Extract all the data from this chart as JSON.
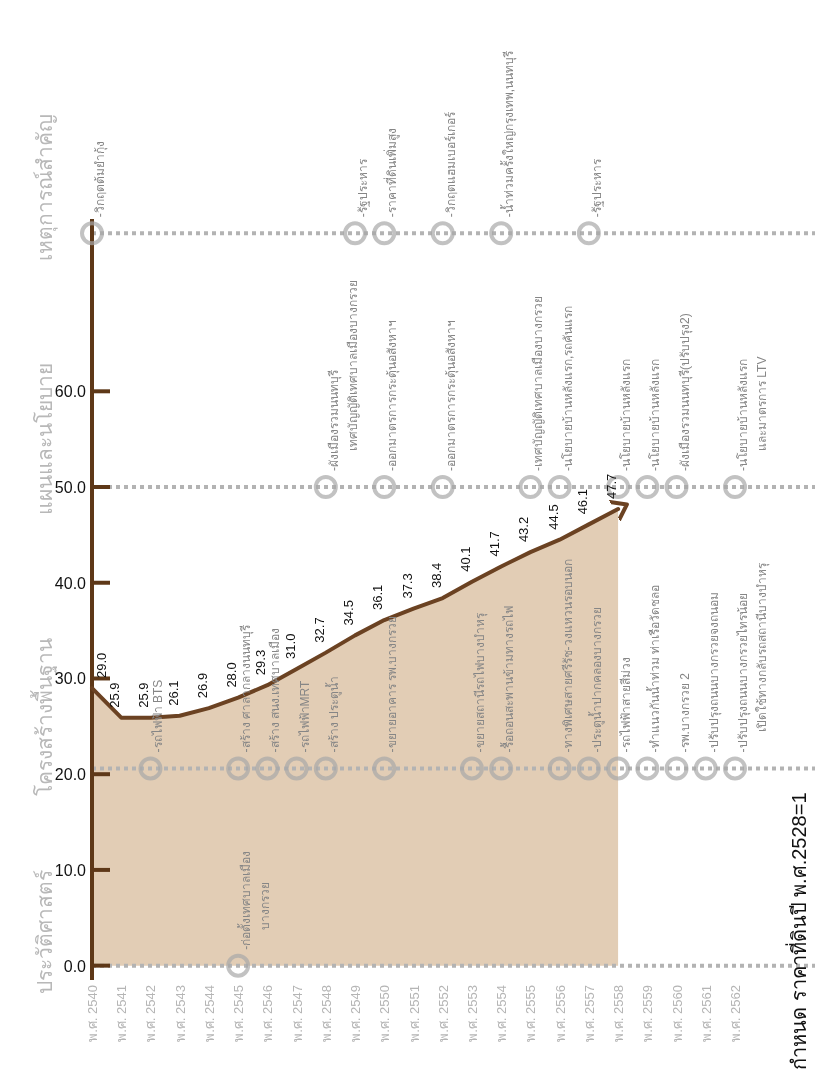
{
  "chart_data": {
    "type": "area",
    "categories": [
      "พ.ศ. 2540",
      "พ.ศ. 2541",
      "พ.ศ. 2542",
      "พ.ศ. 2543",
      "พ.ศ. 2544",
      "พ.ศ. 2545",
      "พ.ศ. 2546",
      "พ.ศ. 2547",
      "พ.ศ. 2548",
      "พ.ศ. 2549",
      "พ.ศ. 2550",
      "พ.ศ. 2551",
      "พ.ศ. 2552",
      "พ.ศ. 2553",
      "พ.ศ. 2554",
      "พ.ศ. 2555",
      "พ.ศ. 2556",
      "พ.ศ. 2557",
      "พ.ศ. 2558",
      "พ.ศ. 2559",
      "พ.ศ. 2560",
      "พ.ศ. 2561",
      "พ.ศ. 2562"
    ],
    "series": [
      {
        "color": "#6b4222",
        "values": [
          29.0,
          25.9,
          25.9,
          26.1,
          26.9,
          28.0,
          29.3,
          31.0,
          32.7,
          34.5,
          36.1,
          37.3,
          38.4,
          40.1,
          41.7,
          43.2,
          44.5,
          46.1,
          47.7,
          null,
          null,
          null,
          null
        ],
        "value_labels": [
          "29.0",
          "25.9",
          "25.9",
          "26.1",
          "26.9",
          "28.0",
          "29.3",
          "31.0",
          "32.7",
          "34.5",
          "36.1",
          "37.3",
          "38.4",
          "40.1",
          "41.7",
          "43.2",
          "44.5",
          "46.1",
          "47.7",
          null,
          null,
          null,
          null
        ]
      }
    ],
    "ylim": [
      -1.5,
      78
    ],
    "yticks": [
      {
        "value": 0,
        "label": "0.0"
      },
      {
        "value": 10,
        "label": "10.0"
      },
      {
        "value": 20,
        "label": "20.0"
      },
      {
        "value": 30,
        "label": "30.0"
      },
      {
        "value": 40,
        "label": "40.0"
      },
      {
        "value": 50,
        "label": "50.0"
      },
      {
        "value": 60,
        "label": "60.0"
      }
    ],
    "ref_lines": [
      {
        "axis": "y",
        "value": 0,
        "label": "ประวัติศาสตร์",
        "color": "#b3b3b3",
        "line_style": "dotted"
      },
      {
        "axis": "y",
        "value": 20.6,
        "label": "โครงสร้างพื้นฐาน",
        "color": "#b3b3b3",
        "line_style": "dotted"
      },
      {
        "axis": "y",
        "value": 50,
        "label": "แผนและนโยบาย",
        "color": "#b3b3b3",
        "line_style": "dotted"
      },
      {
        "axis": "y",
        "value": 76.5,
        "label": "เหตุการณ์สำคัญ",
        "color": "#b3b3b3",
        "line_style": "dotted"
      }
    ],
    "annotations": [
      {
        "text": "-วิกฤตต้มยำกุ้ง",
        "x": "พ.ศ. 2540",
        "y": 76.5
      },
      {
        "text": "-รัฐประหาร",
        "x": "พ.ศ. 2549",
        "y": 76.5
      },
      {
        "text": "-ราคาที่ดินเพิ่มสูง",
        "x": "พ.ศ. 2550",
        "y": 76.5
      },
      {
        "text": "-วิกฤตแฮมเบอร์เกอร์",
        "x": "พ.ศ. 2552",
        "y": 76.5
      },
      {
        "text": "-น้ำท่วมครั้งใหญ่กรุงเทพ,นนทบุรี",
        "x": "พ.ศ. 2554",
        "y": 76.5
      },
      {
        "text": "-รัฐประหาร",
        "x": "พ.ศ. 2557",
        "y": 76.5
      },
      {
        "text": "-ผังเมืองรวมนนทบุรี\nเทศบัญญัติเทศบาลเมืองบางกรวย",
        "x": "พ.ศ. 2548",
        "y": 50
      },
      {
        "text": "-ออกมาตรการกระตุ้นอสังหาฯ",
        "x": "พ.ศ. 2550",
        "y": 50
      },
      {
        "text": "-ออกมาตรการกระตุ้นอสังหาฯ",
        "x": "พ.ศ. 2552",
        "y": 50
      },
      {
        "text": "-เทศบัญญัติเทศบาลเมืองบางกรวย",
        "x": "พ.ศ. 2555",
        "y": 50
      },
      {
        "text": "-นโยบายบ้านหลังแรก,รถคันแรก",
        "x": "พ.ศ. 2556",
        "y": 50
      },
      {
        "text": "-นโยบายบ้านหลังแรก",
        "x": "พ.ศ. 2558",
        "y": 50
      },
      {
        "text": "-นโยบายบ้านหลังแรก",
        "x": "พ.ศ. 2559",
        "y": 50
      },
      {
        "text": "-ผังเมืองรวมนนทบุรี(ปรับปรุง2)",
        "x": "พ.ศ. 2560",
        "y": 50
      },
      {
        "text": "-นโยบายบ้านหลังแรก\nและมาตรการ LTV",
        "x": "พ.ศ. 2562",
        "y": 50
      },
      {
        "text": "-รถไฟฟ้า BTS",
        "x": "พ.ศ. 2542",
        "y": 20.6
      },
      {
        "text": "-สร้าง ศาลากลางนนทบุรี",
        "x": "พ.ศ. 2545",
        "y": 20.6
      },
      {
        "text": "-สร้าง สนง.เทศบาลเมือง",
        "x": "พ.ศ. 2546",
        "y": 20.6
      },
      {
        "text": "-รถไฟฟ้าMRT",
        "x": "พ.ศ. 2547",
        "y": 20.6
      },
      {
        "text": "-สร้าง ประตูน้ำ",
        "x": "พ.ศ. 2548",
        "y": 20.6
      },
      {
        "text": "-ขยายอาคาร รพ.บางกรวย",
        "x": "พ.ศ. 2550",
        "y": 20.6
      },
      {
        "text": "-ขยายสถานีรถไฟบางบำหรุ",
        "x": "พ.ศ. 2553",
        "y": 20.6
      },
      {
        "text": "-รื้อถอนสะพานข้ามทางรถไฟ",
        "x": "พ.ศ. 2554",
        "y": 20.6
      },
      {
        "text": "-ทางพิเศษสายศรีรัช-วงแหวนรอบนอก",
        "x": "พ.ศ. 2556",
        "y": 20.6
      },
      {
        "text": "-ประตูน้ำปากคลองบางกรวย",
        "x": "พ.ศ. 2557",
        "y": 20.6
      },
      {
        "text": "-รถไฟฟ้าสายสีม่วง",
        "x": "พ.ศ. 2558",
        "y": 20.6
      },
      {
        "text": "-ทำแนวกันน้ำท่วม ท่าเรือวัดชลอ",
        "x": "พ.ศ. 2559",
        "y": 20.6
      },
      {
        "text": "-รพ.บางกรวย 2",
        "x": "พ.ศ. 2560",
        "y": 20.6
      },
      {
        "text": "-ปรับปรุงถนนบางกรวยจงถนอม",
        "x": "พ.ศ. 2561",
        "y": 20.6
      },
      {
        "text": "-ปรับปรุงถนนบางกรวยไทรน้อย\nเปิดใช้ทางกลับรถสถานีบางบำหรุ",
        "x": "พ.ศ. 2562",
        "y": 20.6
      },
      {
        "text": "-ก่อตั้งเทศบาลเมือง\nบางกรวย",
        "x": "พ.ศ. 2545",
        "y": 0
      },
      "กำหนด ราคาที่ดินปี พ.ศ.2528=1"
    ]
  }
}
